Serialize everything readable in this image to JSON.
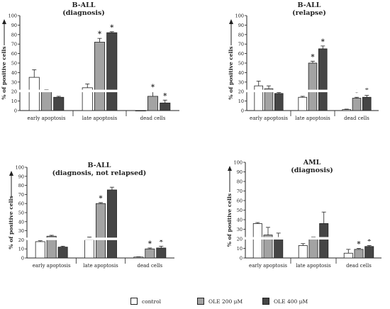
{
  "colors": {
    "control": "#ffffff",
    "ole200": "#a3a3a3",
    "ole400": "#454545",
    "stroke": "#222222"
  },
  "legend": [
    {
      "label": "control",
      "key": "control"
    },
    {
      "label": "OLE 200 μM",
      "key": "ole200"
    },
    {
      "label": "OLE 400 μM",
      "key": "ole400"
    }
  ],
  "chart_data": [
    {
      "type": "bar",
      "title": "B-ALL",
      "subtitle": "(diagnosis)",
      "ylabel": "% of positive cells",
      "ylim": [
        0,
        100
      ],
      "yticks": [
        0,
        10,
        20,
        30,
        40,
        50,
        60,
        70,
        80,
        90,
        100
      ],
      "axis_break": true,
      "categories": [
        "early apoptosis",
        "late apoptosis",
        "dead cells"
      ],
      "series": [
        {
          "name": "control",
          "values": [
            35,
            24,
            0
          ],
          "errors": [
            8,
            4,
            0
          ],
          "significant": [
            false,
            false,
            false
          ]
        },
        {
          "name": "OLE 200 μM",
          "values": [
            20,
            72,
            15
          ],
          "errors": [
            2,
            4,
            5
          ],
          "significant": [
            false,
            true,
            true
          ]
        },
        {
          "name": "OLE 400 μM",
          "values": [
            14,
            82,
            8
          ],
          "errors": [
            1,
            1,
            3
          ],
          "significant": [
            false,
            true,
            true
          ]
        }
      ]
    },
    {
      "type": "bar",
      "title": "B-ALL",
      "subtitle": "(relapse)",
      "ylabel": "% of positive cells",
      "ylim": [
        0,
        100
      ],
      "yticks": [
        0,
        10,
        20,
        30,
        40,
        50,
        60,
        70,
        80,
        90,
        100
      ],
      "axis_break": true,
      "categories": [
        "early apoptosis",
        "late apoptosis",
        "dead cells"
      ],
      "series": [
        {
          "name": "control",
          "values": [
            26,
            14,
            1
          ],
          "errors": [
            5,
            1,
            0.5
          ],
          "significant": [
            false,
            false,
            false
          ]
        },
        {
          "name": "OLE 200 μM",
          "values": [
            23,
            50,
            13
          ],
          "errors": [
            3,
            2,
            1
          ],
          "significant": [
            false,
            true,
            true
          ]
        },
        {
          "name": "OLE 400 μM",
          "values": [
            18,
            65,
            14
          ],
          "errors": [
            1,
            3,
            2
          ],
          "significant": [
            false,
            true,
            true
          ]
        }
      ]
    },
    {
      "type": "bar",
      "title": "B-ALL",
      "subtitle": "(diagnosis, not relapsed)",
      "ylabel": "% of positive cells",
      "ylim": [
        0,
        100
      ],
      "yticks": [
        0,
        10,
        20,
        30,
        40,
        50,
        60,
        70,
        80,
        90,
        100
      ],
      "axis_break": true,
      "categories": [
        "early apoptosis",
        "late apoptosis",
        "dead cells"
      ],
      "series": [
        {
          "name": "control",
          "values": [
            18,
            20,
            1
          ],
          "errors": [
            1,
            3,
            0.3
          ],
          "significant": [
            false,
            false,
            false
          ]
        },
        {
          "name": "OLE 200 μM",
          "values": [
            24,
            60,
            10
          ],
          "errors": [
            1,
            1,
            1
          ],
          "significant": [
            false,
            true,
            true
          ]
        },
        {
          "name": "OLE 400 μM",
          "values": [
            12,
            75,
            11
          ],
          "errors": [
            1,
            3,
            2
          ],
          "significant": [
            false,
            false,
            true
          ]
        }
      ]
    },
    {
      "type": "bar",
      "title": "AML",
      "subtitle": "(diagnosis)",
      "ylabel": "% of positive cells",
      "ylim": [
        0,
        100
      ],
      "yticks": [
        0,
        10,
        20,
        30,
        40,
        50,
        60,
        70,
        80,
        90,
        100
      ],
      "axis_break": true,
      "categories": [
        "early apoptosis",
        "late apoptosis",
        "dead cells"
      ],
      "series": [
        {
          "name": "control",
          "values": [
            36,
            13,
            5
          ],
          "errors": [
            1,
            2,
            4
          ],
          "significant": [
            false,
            false,
            false
          ]
        },
        {
          "name": "OLE 200 μM",
          "values": [
            24,
            21,
            9
          ],
          "errors": [
            8,
            1,
            1
          ],
          "significant": [
            false,
            false,
            true
          ]
        },
        {
          "name": "OLE 400 μM",
          "values": [
            20,
            36,
            12
          ],
          "errors": [
            6,
            12,
            1
          ],
          "significant": [
            false,
            false,
            true
          ]
        }
      ]
    }
  ]
}
